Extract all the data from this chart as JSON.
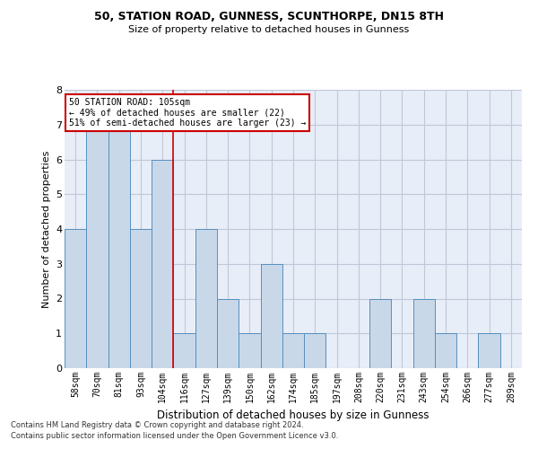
{
  "title1": "50, STATION ROAD, GUNNESS, SCUNTHORPE, DN15 8TH",
  "title2": "Size of property relative to detached houses in Gunness",
  "xlabel": "Distribution of detached houses by size in Gunness",
  "ylabel": "Number of detached properties",
  "categories": [
    "58sqm",
    "70sqm",
    "81sqm",
    "93sqm",
    "104sqm",
    "116sqm",
    "127sqm",
    "139sqm",
    "150sqm",
    "162sqm",
    "174sqm",
    "185sqm",
    "197sqm",
    "208sqm",
    "220sqm",
    "231sqm",
    "243sqm",
    "254sqm",
    "266sqm",
    "277sqm",
    "289sqm"
  ],
  "values": [
    4,
    7,
    7,
    4,
    6,
    1,
    4,
    2,
    1,
    3,
    1,
    1,
    0,
    0,
    2,
    0,
    2,
    1,
    0,
    1,
    0
  ],
  "bar_color": "#c8d8e8",
  "bar_edge_color": "#5590c0",
  "vline_color": "#cc0000",
  "annotation_line1": "50 STATION ROAD: 105sqm",
  "annotation_line2": "← 49% of detached houses are smaller (22)",
  "annotation_line3": "51% of semi-detached houses are larger (23) →",
  "annotation_box_color": "#ffffff",
  "annotation_box_edge": "#cc0000",
  "grid_color": "#c0c8d8",
  "background_color": "#e8eef8",
  "ylim": [
    0,
    8
  ],
  "yticks": [
    0,
    1,
    2,
    3,
    4,
    5,
    6,
    7,
    8
  ],
  "footer1": "Contains HM Land Registry data © Crown copyright and database right 2024.",
  "footer2": "Contains public sector information licensed under the Open Government Licence v3.0."
}
